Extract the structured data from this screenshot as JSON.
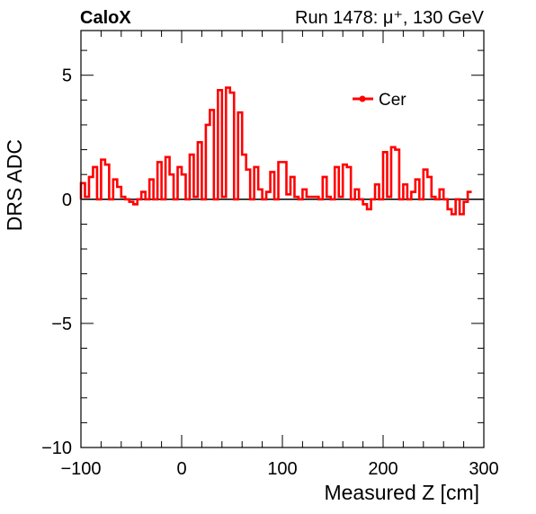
{
  "header": {
    "experiment": "CaloX",
    "run_info": "Run 1478:   μ⁺, 130 GeV"
  },
  "chart_data": {
    "type": "line",
    "style": "step",
    "xlabel": "Measured Z [cm]",
    "ylabel": "DRS ADC",
    "xlim": [
      -100,
      300
    ],
    "ylim": [
      -10,
      6.8
    ],
    "xticks": [
      -100,
      0,
      100,
      200,
      300
    ],
    "xtick_labels": [
      "−100",
      "0",
      "100",
      "200",
      "300"
    ],
    "yticks": [
      -10,
      -5,
      0,
      5
    ],
    "ytick_labels": [
      "−10",
      "−5",
      "0",
      "5"
    ],
    "grid": false,
    "legend": "top-right",
    "reference_line_y": 0,
    "series": [
      {
        "name": "Cer",
        "color": "#ff0000",
        "bin_edges_start": -100,
        "bin_width": 4,
        "values": [
          0.65,
          0.1,
          0.9,
          1.3,
          0.0,
          1.6,
          1.4,
          0.0,
          0.8,
          0.5,
          0.1,
          0.0,
          -0.1,
          -0.2,
          0.0,
          0.3,
          0.0,
          0.8,
          0.0,
          1.5,
          0.0,
          1.7,
          1.0,
          0.0,
          1.3,
          1.0,
          0.0,
          1.8,
          0.1,
          2.3,
          0.0,
          3.0,
          3.6,
          0.0,
          4.4,
          0.1,
          4.5,
          4.3,
          0.0,
          3.5,
          1.8,
          1.2,
          0.0,
          1.3,
          0.4,
          0.0,
          0.3,
          1.1,
          0.0,
          1.5,
          1.5,
          0.2,
          0.9,
          0.1,
          0.0,
          0.4,
          0.1,
          0.1,
          0.1,
          0.0,
          0.9,
          0.1,
          0.0,
          1.3,
          0.1,
          1.4,
          1.3,
          0.0,
          0.4,
          0.0,
          -0.2,
          -0.4,
          0.0,
          0.6,
          0.0,
          1.9,
          0.1,
          2.1,
          2.0,
          0.0,
          0.6,
          0.0,
          0.3,
          0.8,
          0.0,
          1.2,
          0.9,
          0.1,
          0.0,
          0.4,
          0.0,
          -0.4,
          -0.6,
          0.0,
          -0.6,
          -0.1,
          0.3
        ]
      }
    ]
  }
}
